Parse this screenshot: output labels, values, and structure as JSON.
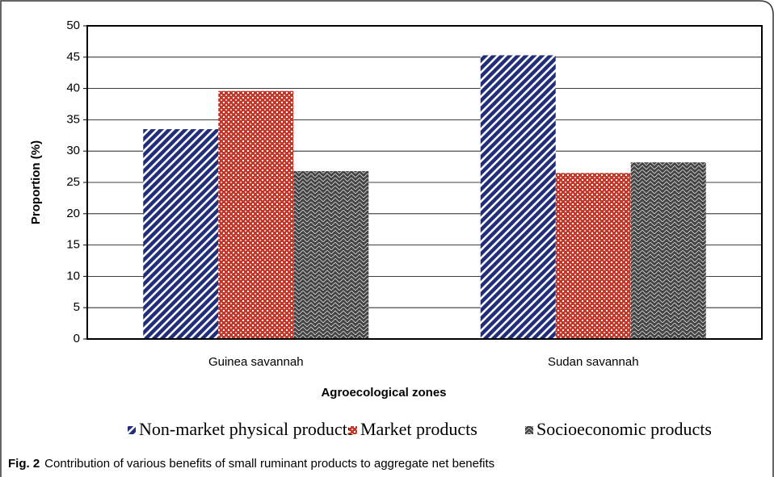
{
  "chart_data": {
    "type": "bar",
    "categories": [
      "Guinea savannah",
      "Sudan savannah"
    ],
    "series": [
      {
        "name": "Non-market physical products",
        "color": "#1f2d7a",
        "values": [
          33.5,
          45.3
        ]
      },
      {
        "name": "Market products",
        "color": "#c0392b",
        "values": [
          39.6,
          26.5
        ]
      },
      {
        "name": "Socioeconomic products",
        "color": "#444444",
        "values": [
          26.8,
          28.2
        ]
      }
    ],
    "xlabel": "Agroecological zones",
    "ylabel": "Proportion (%)",
    "ylim": [
      0,
      50
    ],
    "yticks": [
      0,
      5,
      10,
      15,
      20,
      25,
      30,
      35,
      40,
      45,
      50
    ],
    "grid": true,
    "legend": "bottom"
  },
  "caption_label": "Fig. 2",
  "caption": "Contribution of various benefits of small ruminant products to aggregate net benefits"
}
